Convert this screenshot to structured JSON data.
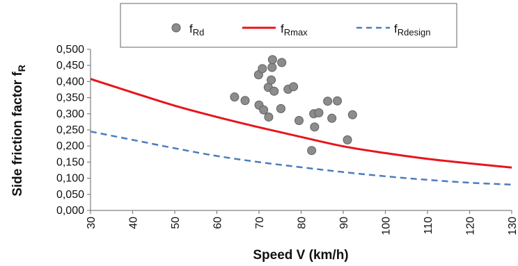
{
  "chart_data": {
    "type": "scatter",
    "xlabel": "Speed V (km/h)",
    "ylabel": {
      "main": "Side friction factor f",
      "sub": "R"
    },
    "xlim": [
      30,
      130
    ],
    "ylim": [
      0.0,
      0.5
    ],
    "x_ticks": [
      "30",
      "40",
      "50",
      "60",
      "70",
      "80",
      "90",
      "100",
      "110",
      "120",
      "130"
    ],
    "y_ticks": [
      "0,000",
      "0,050",
      "0,100",
      "0,150",
      "0,200",
      "0,250",
      "0,300",
      "0,350",
      "0,400",
      "0,450",
      "0,500"
    ],
    "grid": false,
    "legend_position": "top",
    "legend": [
      {
        "main": "f",
        "sub": "Rd"
      },
      {
        "main": "f",
        "sub": "Rmax"
      },
      {
        "main": "f",
        "sub": "Rdesign"
      }
    ],
    "series": [
      {
        "name": "fRd",
        "style": "markers",
        "color": "#8c8c8c",
        "points": [
          [
            64.2,
            0.352
          ],
          [
            66.7,
            0.341
          ],
          [
            69.9,
            0.421
          ],
          [
            70.0,
            0.327
          ],
          [
            70.8,
            0.44
          ],
          [
            71.1,
            0.312
          ],
          [
            72.2,
            0.382
          ],
          [
            72.3,
            0.29
          ],
          [
            72.9,
            0.405
          ],
          [
            73.1,
            0.444
          ],
          [
            73.2,
            0.468
          ],
          [
            73.6,
            0.37
          ],
          [
            75.2,
            0.316
          ],
          [
            75.4,
            0.459
          ],
          [
            76.9,
            0.376
          ],
          [
            78.2,
            0.384
          ],
          [
            79.5,
            0.279
          ],
          [
            82.5,
            0.186
          ],
          [
            83.0,
            0.3
          ],
          [
            83.2,
            0.259
          ],
          [
            84.2,
            0.303
          ],
          [
            86.3,
            0.339
          ],
          [
            87.3,
            0.286
          ],
          [
            88.6,
            0.34
          ],
          [
            91.0,
            0.219
          ],
          [
            92.2,
            0.297
          ]
        ]
      },
      {
        "name": "fRmax",
        "style": "solid",
        "color": "#e8141b",
        "points": [
          [
            30,
            0.408
          ],
          [
            40,
            0.366
          ],
          [
            50,
            0.325
          ],
          [
            60,
            0.29
          ],
          [
            70,
            0.258
          ],
          [
            80,
            0.228
          ],
          [
            90,
            0.199
          ],
          [
            100,
            0.178
          ],
          [
            110,
            0.16
          ],
          [
            120,
            0.146
          ],
          [
            130,
            0.133
          ]
        ]
      },
      {
        "name": "fRdesign",
        "style": "dashed",
        "color": "#4a7bbd",
        "points": [
          [
            30,
            0.245
          ],
          [
            40,
            0.219
          ],
          [
            50,
            0.193
          ],
          [
            60,
            0.169
          ],
          [
            70,
            0.15
          ],
          [
            80,
            0.134
          ],
          [
            90,
            0.119
          ],
          [
            100,
            0.106
          ],
          [
            110,
            0.095
          ],
          [
            120,
            0.086
          ],
          [
            130,
            0.08
          ]
        ]
      }
    ]
  }
}
